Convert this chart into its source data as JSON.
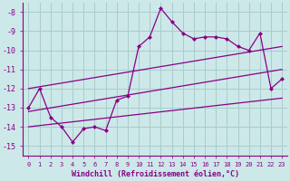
{
  "xlabel": "Windchill (Refroidissement éolien,°C)",
  "xlim": [
    -0.5,
    23.5
  ],
  "ylim": [
    -15.5,
    -7.5
  ],
  "yticks": [
    -15,
    -14,
    -13,
    -12,
    -11,
    -10,
    -9,
    -8
  ],
  "xticks": [
    0,
    1,
    2,
    3,
    4,
    5,
    6,
    7,
    8,
    9,
    10,
    11,
    12,
    13,
    14,
    15,
    16,
    17,
    18,
    19,
    20,
    21,
    22,
    23
  ],
  "bg_color": "#cce8e8",
  "grid_color": "#aacccc",
  "line_color": "#880088",
  "series1_x": [
    0,
    1,
    2,
    3,
    4,
    5,
    6,
    7,
    8,
    9,
    10,
    11,
    12,
    13,
    14,
    15,
    16,
    17,
    18,
    19,
    20,
    21,
    22,
    23
  ],
  "series1_y": [
    -13.0,
    -12.0,
    -13.5,
    -14.0,
    -14.8,
    -14.1,
    -14.0,
    -14.2,
    -12.6,
    -12.4,
    -9.8,
    -9.3,
    -7.8,
    -8.5,
    -9.1,
    -9.4,
    -9.3,
    -9.3,
    -9.4,
    -9.8,
    -10.0,
    -9.1,
    -12.0,
    -11.5
  ],
  "trend1_x": [
    0,
    23
  ],
  "trend1_y": [
    -12.0,
    -9.8
  ],
  "trend2_x": [
    0,
    23
  ],
  "trend2_y": [
    -13.2,
    -11.0
  ],
  "trend3_x": [
    0,
    23
  ],
  "trend3_y": [
    -14.0,
    -12.5
  ]
}
